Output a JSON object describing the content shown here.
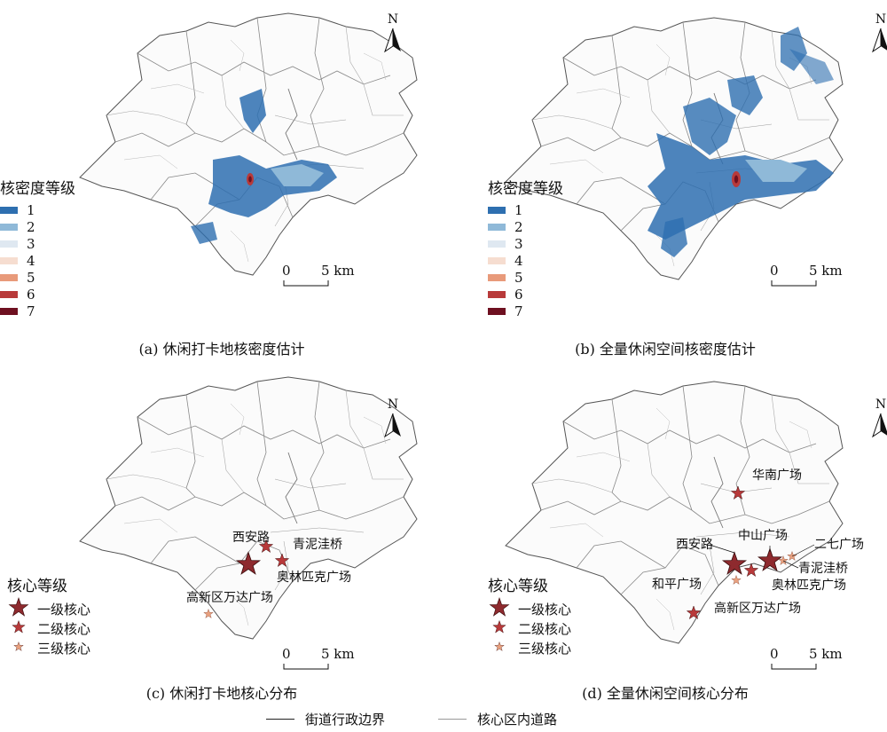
{
  "panels": {
    "a": {
      "caption": "(a) 休闲打卡地核密度估计"
    },
    "b": {
      "caption": "(b) 全量休闲空间核密度估计"
    },
    "c": {
      "caption": "(c) 休闲打卡地核心分布"
    },
    "d": {
      "caption": "(d) 全量休闲空间核心分布"
    }
  },
  "density_legend": {
    "title": "核密度等级",
    "levels": [
      {
        "label": "1",
        "color": "#2e6fb0"
      },
      {
        "label": "2",
        "color": "#8fb9d8"
      },
      {
        "label": "3",
        "color": "#dfe8f1"
      },
      {
        "label": "4",
        "color": "#f6ddd0"
      },
      {
        "label": "5",
        "color": "#e89a7a"
      },
      {
        "label": "6",
        "color": "#b83a3a"
      },
      {
        "label": "7",
        "color": "#6e1020"
      }
    ]
  },
  "core_legend": {
    "title": "核心等级",
    "levels": [
      {
        "label": "一级核心",
        "color": "#8e2a2e"
      },
      {
        "label": "二级核心",
        "color": "#b8393a"
      },
      {
        "label": "三级核心",
        "color": "#e8a07e"
      }
    ]
  },
  "scale": {
    "zero": "0",
    "five": "5 km"
  },
  "north": "N",
  "panel_c_cores": [
    {
      "name": "西安路",
      "level": 1
    },
    {
      "name": "青泥洼桥",
      "level": 2
    },
    {
      "name": "奥林匹克广场",
      "level": 2
    },
    {
      "name": "高新区万达广场",
      "level": 3
    }
  ],
  "panel_d_cores": [
    {
      "name": "华南广场",
      "level": 2
    },
    {
      "name": "中山广场",
      "level": 1
    },
    {
      "name": "二七广场",
      "level": 3
    },
    {
      "name": "西安路",
      "level": 1
    },
    {
      "name": "青泥洼桥",
      "level": 3
    },
    {
      "name": "和平广场",
      "level": 3
    },
    {
      "name": "奥林匹克广场",
      "level": 2
    },
    {
      "name": "高新区万达广场",
      "level": 2
    }
  ],
  "bottom_legend": {
    "boundary": "街道行政边界",
    "roads": "核心区内道路"
  }
}
